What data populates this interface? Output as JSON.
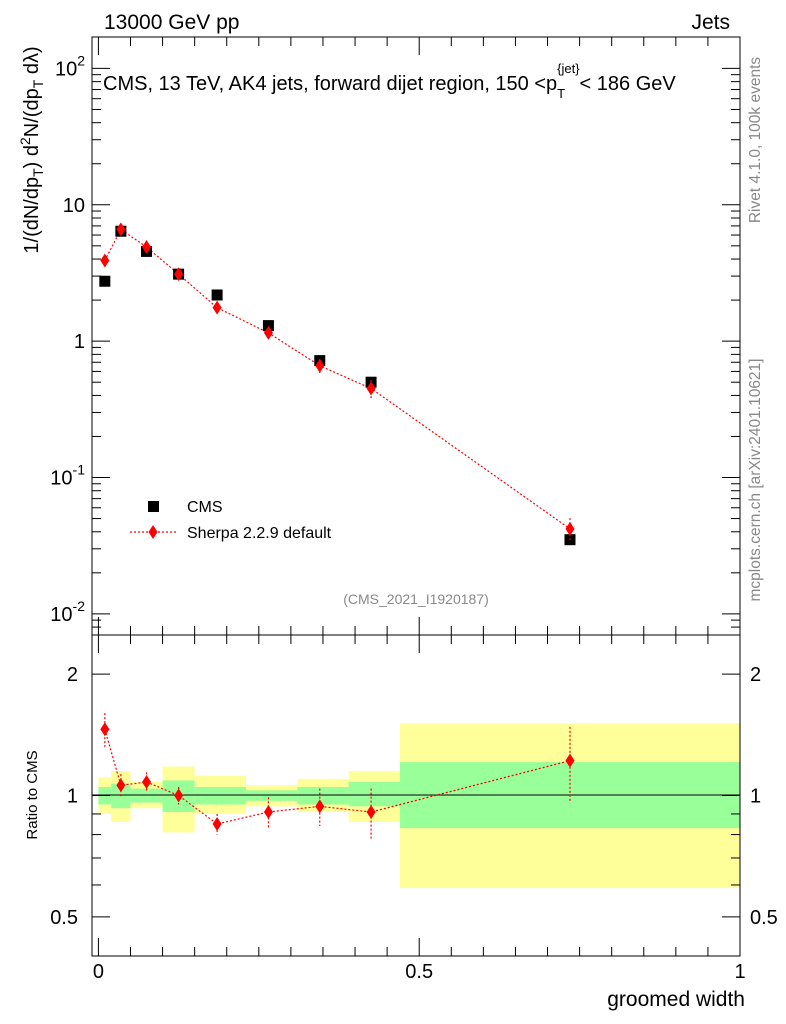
{
  "header": {
    "left": "13000 GeV pp",
    "right": "Jets"
  },
  "side_labels": {
    "rivet": "Rivet 4.1.0,  100k events",
    "mcplots": "mcplots.cern.ch [arXiv:2401.10621]"
  },
  "chart_data": [
    {
      "type": "scatter",
      "panel": "main",
      "title": "CMS, 13 TeV, AK4 jets, forward dijet region, 150 <p_T^{jet}< 186 GeV",
      "ylabel": "1/(dN/dp_T) d²N/(dp_T dλ)",
      "yscale": "log",
      "ylim": [
        0.007,
        170
      ],
      "xlim": [
        -0.01,
        1.0
      ],
      "analysis_id": "(CMS_2021_I1920187)",
      "y_tick_labels": [
        "10^-2",
        "10^-1",
        "1",
        "10",
        "10^2"
      ],
      "legend": {
        "position": "bottom-left",
        "entries": [
          "CMS",
          "Sherpa 2.2.9 default"
        ]
      },
      "series": [
        {
          "name": "CMS",
          "color": "#000000",
          "marker": "square",
          "x": [
            0.01,
            0.035,
            0.075,
            0.125,
            0.185,
            0.265,
            0.345,
            0.425,
            0.735
          ],
          "y": [
            2.75,
            6.4,
            4.55,
            3.1,
            2.18,
            1.3,
            0.72,
            0.5,
            0.035
          ]
        },
        {
          "name": "Sherpa 2.2.9 default",
          "color": "#ff0000",
          "marker": "diamond",
          "line": "dotted",
          "x": [
            0.01,
            0.035,
            0.075,
            0.125,
            0.185,
            0.265,
            0.345,
            0.425,
            0.735
          ],
          "y": [
            3.9,
            6.6,
            4.9,
            3.1,
            1.76,
            1.15,
            0.66,
            0.45,
            0.042
          ],
          "yerr_rel": [
            0.1,
            0.06,
            0.07,
            0.05,
            0.06,
            0.1,
            0.12,
            0.15,
            0.2
          ]
        }
      ]
    },
    {
      "type": "scatter",
      "panel": "ratio",
      "xlabel": "groomed width",
      "ylabel": "Ratio to CMS",
      "yscale": "log",
      "ylim": [
        0.4,
        2.5
      ],
      "xlim": [
        -0.01,
        1.0
      ],
      "x_tick_labels": [
        "0",
        "0.5",
        "1"
      ],
      "y_tick_labels": [
        "0.5",
        "1",
        "2"
      ],
      "bins": [
        {
          "xlo": 0.0,
          "xhi": 0.02,
          "green_lo": 0.95,
          "green_hi": 1.05,
          "yellow_lo": 0.9,
          "yellow_hi": 1.11
        },
        {
          "xlo": 0.02,
          "xhi": 0.05,
          "green_lo": 0.93,
          "green_hi": 1.07,
          "yellow_lo": 0.86,
          "yellow_hi": 1.15
        },
        {
          "xlo": 0.05,
          "xhi": 0.1,
          "green_lo": 0.96,
          "green_hi": 1.04,
          "yellow_lo": 0.93,
          "yellow_hi": 1.08
        },
        {
          "xlo": 0.1,
          "xhi": 0.15,
          "green_lo": 0.91,
          "green_hi": 1.09,
          "yellow_lo": 0.81,
          "yellow_hi": 1.18
        },
        {
          "xlo": 0.15,
          "xhi": 0.23,
          "green_lo": 0.95,
          "green_hi": 1.05,
          "yellow_lo": 0.9,
          "yellow_hi": 1.12
        },
        {
          "xlo": 0.23,
          "xhi": 0.31,
          "green_lo": 0.97,
          "green_hi": 1.03,
          "yellow_lo": 0.94,
          "yellow_hi": 1.06
        },
        {
          "xlo": 0.31,
          "xhi": 0.39,
          "green_lo": 0.95,
          "green_hi": 1.05,
          "yellow_lo": 0.91,
          "yellow_hi": 1.1
        },
        {
          "xlo": 0.39,
          "xhi": 0.47,
          "green_lo": 0.94,
          "green_hi": 1.08,
          "yellow_lo": 0.86,
          "yellow_hi": 1.15
        },
        {
          "xlo": 0.47,
          "xhi": 1.0,
          "green_lo": 0.83,
          "green_hi": 1.21,
          "yellow_lo": 0.59,
          "yellow_hi": 1.51
        }
      ],
      "series": [
        {
          "name": "Sherpa 2.2.9 default / CMS",
          "color": "#ff0000",
          "x": [
            0.01,
            0.035,
            0.075,
            0.125,
            0.185,
            0.265,
            0.345,
            0.425,
            0.735
          ],
          "y": [
            1.46,
            1.06,
            1.08,
            1.0,
            0.85,
            0.91,
            0.94,
            0.91,
            1.22
          ],
          "yerr": [
            0.14,
            0.07,
            0.06,
            0.05,
            0.05,
            0.08,
            0.1,
            0.13,
            0.26
          ]
        }
      ]
    }
  ]
}
